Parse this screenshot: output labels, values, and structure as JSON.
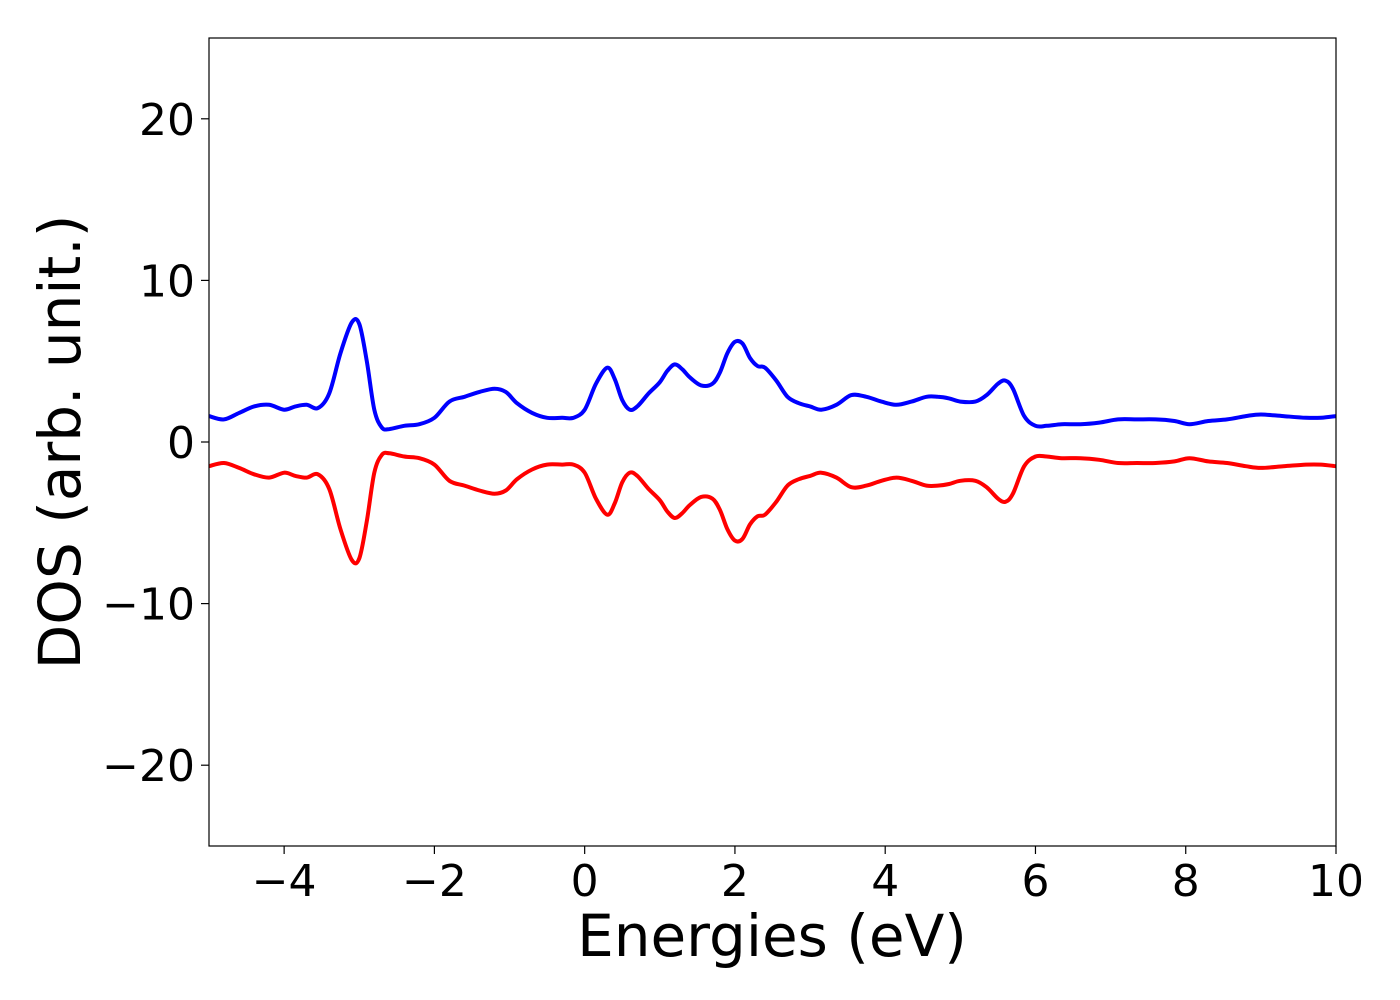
{
  "chart_data": {
    "type": "line",
    "title": "",
    "xlabel": "Energies (eV)",
    "ylabel": "DOS (arb. unit.)",
    "xlim": [
      -5,
      10
    ],
    "ylim": [
      -25,
      25
    ],
    "grid": false,
    "x_ticks": [
      -4,
      -2,
      0,
      2,
      4,
      6,
      8,
      10
    ],
    "x_tick_labels": [
      "−4",
      "−2",
      "0",
      "2",
      "4",
      "6",
      "8",
      "10"
    ],
    "y_ticks": [
      -20,
      -10,
      0,
      10,
      20
    ],
    "y_tick_labels": [
      "−20",
      "−10",
      "0",
      "10",
      "20"
    ],
    "series": [
      {
        "color": "#0000ff",
        "x": [
          -5.0,
          -4.8,
          -4.6,
          -4.4,
          -4.2,
          -4.0,
          -3.85,
          -3.7,
          -3.55,
          -3.4,
          -3.25,
          -3.1,
          -3.0,
          -2.9,
          -2.8,
          -2.7,
          -2.6,
          -2.4,
          -2.2,
          -2.0,
          -1.8,
          -1.6,
          -1.4,
          -1.2,
          -1.05,
          -0.9,
          -0.7,
          -0.5,
          -0.3,
          -0.15,
          0.0,
          0.15,
          0.3,
          0.4,
          0.5,
          0.6,
          0.7,
          0.85,
          1.0,
          1.1,
          1.2,
          1.3,
          1.4,
          1.55,
          1.7,
          1.8,
          1.9,
          2.0,
          2.1,
          2.2,
          2.3,
          2.4,
          2.55,
          2.7,
          2.85,
          3.0,
          3.15,
          3.35,
          3.55,
          3.75,
          3.95,
          4.15,
          4.35,
          4.55,
          4.7,
          4.85,
          5.0,
          5.2,
          5.35,
          5.5,
          5.6,
          5.7,
          5.85,
          6.0,
          6.15,
          6.35,
          6.6,
          6.85,
          7.1,
          7.35,
          7.6,
          7.85,
          8.05,
          8.3,
          8.55,
          8.8,
          9.0,
          9.3,
          9.6,
          9.8,
          10.0
        ],
        "values": [
          1.6,
          1.4,
          1.8,
          2.2,
          2.3,
          2.0,
          2.2,
          2.3,
          2.1,
          3.0,
          5.5,
          7.4,
          7.3,
          5.0,
          2.0,
          0.9,
          0.8,
          1.0,
          1.1,
          1.5,
          2.5,
          2.8,
          3.1,
          3.3,
          3.1,
          2.4,
          1.8,
          1.5,
          1.5,
          1.5,
          2.0,
          3.6,
          4.6,
          3.9,
          2.6,
          2.0,
          2.2,
          3.0,
          3.7,
          4.4,
          4.8,
          4.5,
          4.0,
          3.5,
          3.6,
          4.3,
          5.5,
          6.2,
          6.1,
          5.2,
          4.7,
          4.6,
          3.8,
          2.8,
          2.4,
          2.2,
          2.0,
          2.3,
          2.9,
          2.8,
          2.5,
          2.3,
          2.5,
          2.8,
          2.8,
          2.7,
          2.5,
          2.5,
          2.9,
          3.6,
          3.8,
          3.3,
          1.6,
          1.0,
          1.0,
          1.1,
          1.1,
          1.2,
          1.4,
          1.4,
          1.4,
          1.3,
          1.1,
          1.3,
          1.4,
          1.6,
          1.7,
          1.6,
          1.5,
          1.5,
          1.6
        ]
      },
      {
        "color": "#ff0000",
        "x": [
          -5.0,
          -4.8,
          -4.6,
          -4.4,
          -4.2,
          -4.0,
          -3.85,
          -3.7,
          -3.55,
          -3.4,
          -3.25,
          -3.1,
          -3.0,
          -2.9,
          -2.8,
          -2.7,
          -2.6,
          -2.4,
          -2.2,
          -2.0,
          -1.8,
          -1.6,
          -1.4,
          -1.2,
          -1.05,
          -0.9,
          -0.7,
          -0.5,
          -0.3,
          -0.15,
          0.0,
          0.15,
          0.3,
          0.4,
          0.5,
          0.6,
          0.7,
          0.85,
          1.0,
          1.1,
          1.2,
          1.3,
          1.4,
          1.55,
          1.7,
          1.8,
          1.9,
          2.0,
          2.1,
          2.2,
          2.3,
          2.4,
          2.55,
          2.7,
          2.85,
          3.0,
          3.15,
          3.35,
          3.55,
          3.75,
          3.95,
          4.15,
          4.35,
          4.55,
          4.7,
          4.85,
          5.0,
          5.2,
          5.35,
          5.5,
          5.6,
          5.7,
          5.85,
          6.0,
          6.15,
          6.35,
          6.6,
          6.85,
          7.1,
          7.35,
          7.6,
          7.85,
          8.05,
          8.3,
          8.55,
          8.8,
          9.0,
          9.3,
          9.6,
          9.8,
          10.0
        ],
        "values": [
          -1.5,
          -1.3,
          -1.6,
          -2.0,
          -2.2,
          -1.9,
          -2.1,
          -2.2,
          -2.0,
          -2.9,
          -5.4,
          -7.3,
          -7.2,
          -4.9,
          -1.9,
          -0.8,
          -0.7,
          -0.9,
          -1.0,
          -1.4,
          -2.4,
          -2.7,
          -3.0,
          -3.2,
          -3.0,
          -2.3,
          -1.7,
          -1.4,
          -1.4,
          -1.4,
          -1.9,
          -3.5,
          -4.5,
          -3.8,
          -2.5,
          -1.9,
          -2.1,
          -2.9,
          -3.6,
          -4.3,
          -4.7,
          -4.4,
          -3.9,
          -3.4,
          -3.5,
          -4.2,
          -5.4,
          -6.1,
          -6.0,
          -5.1,
          -4.6,
          -4.5,
          -3.7,
          -2.7,
          -2.3,
          -2.1,
          -1.9,
          -2.2,
          -2.8,
          -2.7,
          -2.4,
          -2.2,
          -2.4,
          -2.7,
          -2.7,
          -2.6,
          -2.4,
          -2.4,
          -2.8,
          -3.5,
          -3.7,
          -3.2,
          -1.5,
          -0.9,
          -0.9,
          -1.0,
          -1.0,
          -1.1,
          -1.3,
          -1.3,
          -1.3,
          -1.2,
          -1.0,
          -1.2,
          -1.3,
          -1.5,
          -1.6,
          -1.5,
          -1.4,
          -1.4,
          -1.5
        ]
      }
    ]
  }
}
